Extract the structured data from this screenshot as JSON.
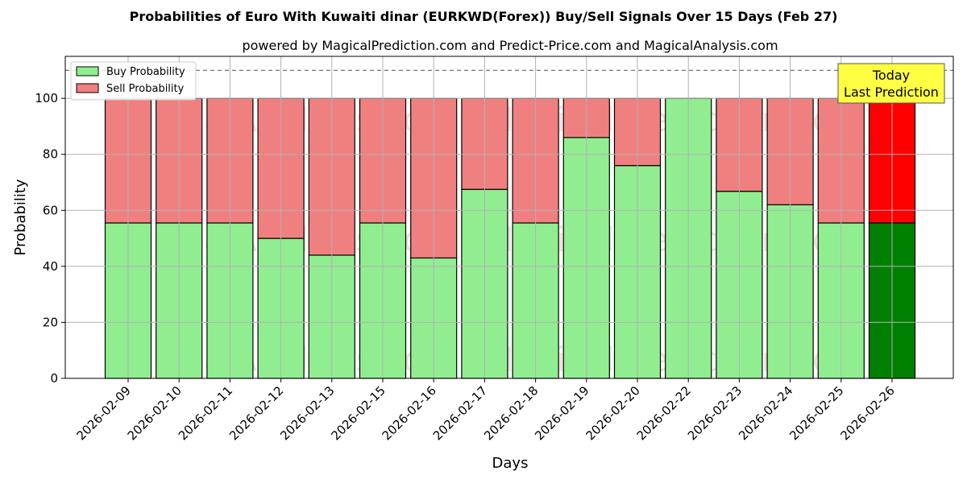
{
  "chart_data": {
    "type": "bar",
    "stacked": true,
    "title": "Probabilities of Euro With Kuwaiti dinar (EURKWD(Forex)) Buy/Sell Signals Over 15 Days (Feb 27)",
    "subtitle": "powered by MagicalPrediction.com and Predict-Price.com and MagicalAnalysis.com",
    "xlabel": "Days",
    "ylabel": "Probability",
    "ylim": [
      0,
      115
    ],
    "yticks": [
      0,
      20,
      40,
      60,
      80,
      100
    ],
    "reference_line": 110,
    "grid": true,
    "legend_position": "top-left",
    "categories": [
      "2026-02-09",
      "2026-02-10",
      "2026-02-11",
      "2026-02-12",
      "2026-02-13",
      "2026-02-15",
      "2026-02-16",
      "2026-02-17",
      "2026-02-18",
      "2026-02-19",
      "2026-02-20",
      "2026-02-22",
      "2026-02-23",
      "2026-02-24",
      "2026-02-25",
      "2026-02-26"
    ],
    "series": [
      {
        "name": "Buy Probability",
        "color": "#90ee90",
        "highlight_color": "#008000",
        "values": [
          55.5,
          55.5,
          55.5,
          50,
          44,
          55.5,
          43,
          67.5,
          55.5,
          86,
          76,
          100,
          66.8,
          62,
          55.5,
          55.5
        ]
      },
      {
        "name": "Sell Probability",
        "color": "#f08080",
        "highlight_color": "#ff0000",
        "values": [
          44.5,
          44.5,
          44.5,
          50,
          56,
          44.5,
          57,
          32.5,
          44.5,
          14,
          24,
          0,
          33.2,
          38,
          44.5,
          44.5
        ]
      }
    ],
    "highlight_index": 15,
    "annotation": {
      "lines": [
        "Today",
        "Last Prediction"
      ],
      "background": "#ffff44"
    },
    "watermarks": [
      "MagicalAnalysis.com",
      "MagicalPrediction.com"
    ]
  }
}
